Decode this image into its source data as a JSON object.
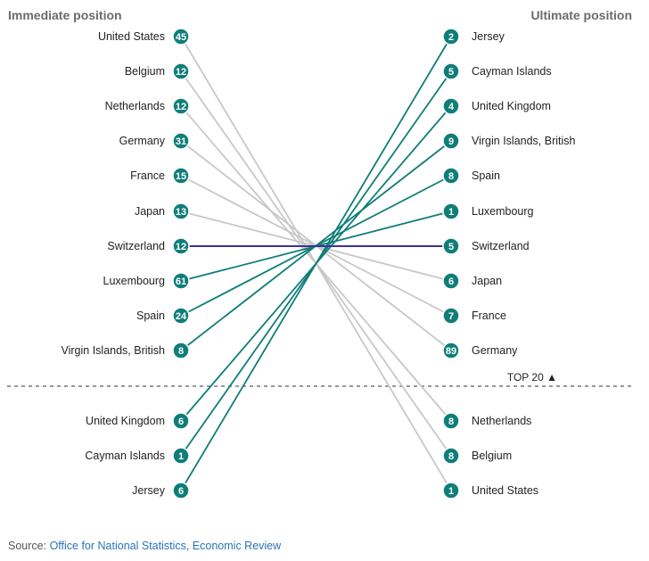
{
  "chart_data": {
    "type": "slopegraph",
    "left_header": "Immediate position",
    "right_header": "Ultimate position",
    "threshold_label": "TOP 20 ▲",
    "left": [
      {
        "name": "United States",
        "rank": 45
      },
      {
        "name": "Belgium",
        "rank": 12
      },
      {
        "name": "Netherlands",
        "rank": 12
      },
      {
        "name": "Germany",
        "rank": 31
      },
      {
        "name": "France",
        "rank": 15
      },
      {
        "name": "Japan",
        "rank": 13
      },
      {
        "name": "Switzerland",
        "rank": 12
      },
      {
        "name": "Luxembourg",
        "rank": 61
      },
      {
        "name": "Spain",
        "rank": 24
      },
      {
        "name": "Virgin Islands, British",
        "rank": 8
      },
      {
        "name": "United Kingdom",
        "rank": 6
      },
      {
        "name": "Cayman Islands",
        "rank": 1
      },
      {
        "name": "Jersey",
        "rank": 6
      }
    ],
    "right": [
      {
        "name": "Jersey",
        "rank": 2
      },
      {
        "name": "Cayman Islands",
        "rank": 5
      },
      {
        "name": "United Kingdom",
        "rank": 4
      },
      {
        "name": "Virgin Islands, British",
        "rank": 9
      },
      {
        "name": "Spain",
        "rank": 8
      },
      {
        "name": "Luxembourg",
        "rank": 1
      },
      {
        "name": "Switzerland",
        "rank": 5
      },
      {
        "name": "Japan",
        "rank": 6
      },
      {
        "name": "France",
        "rank": 7
      },
      {
        "name": "Germany",
        "rank": 89
      },
      {
        "name": "Netherlands",
        "rank": 8
      },
      {
        "name": "Belgium",
        "rank": 8
      },
      {
        "name": "United States",
        "rank": 1
      }
    ],
    "colors": {
      "rising": "#0f7e78",
      "falling": "#c8c8c8",
      "unchanged": "#3b3391",
      "marker": "#0f7e78",
      "header": "#6b6b6b",
      "divider": "#777777",
      "link": "#2a73b8"
    }
  },
  "source": {
    "prefix": "Source: ",
    "link_text": "Office for National Statistics, Economic Review"
  }
}
